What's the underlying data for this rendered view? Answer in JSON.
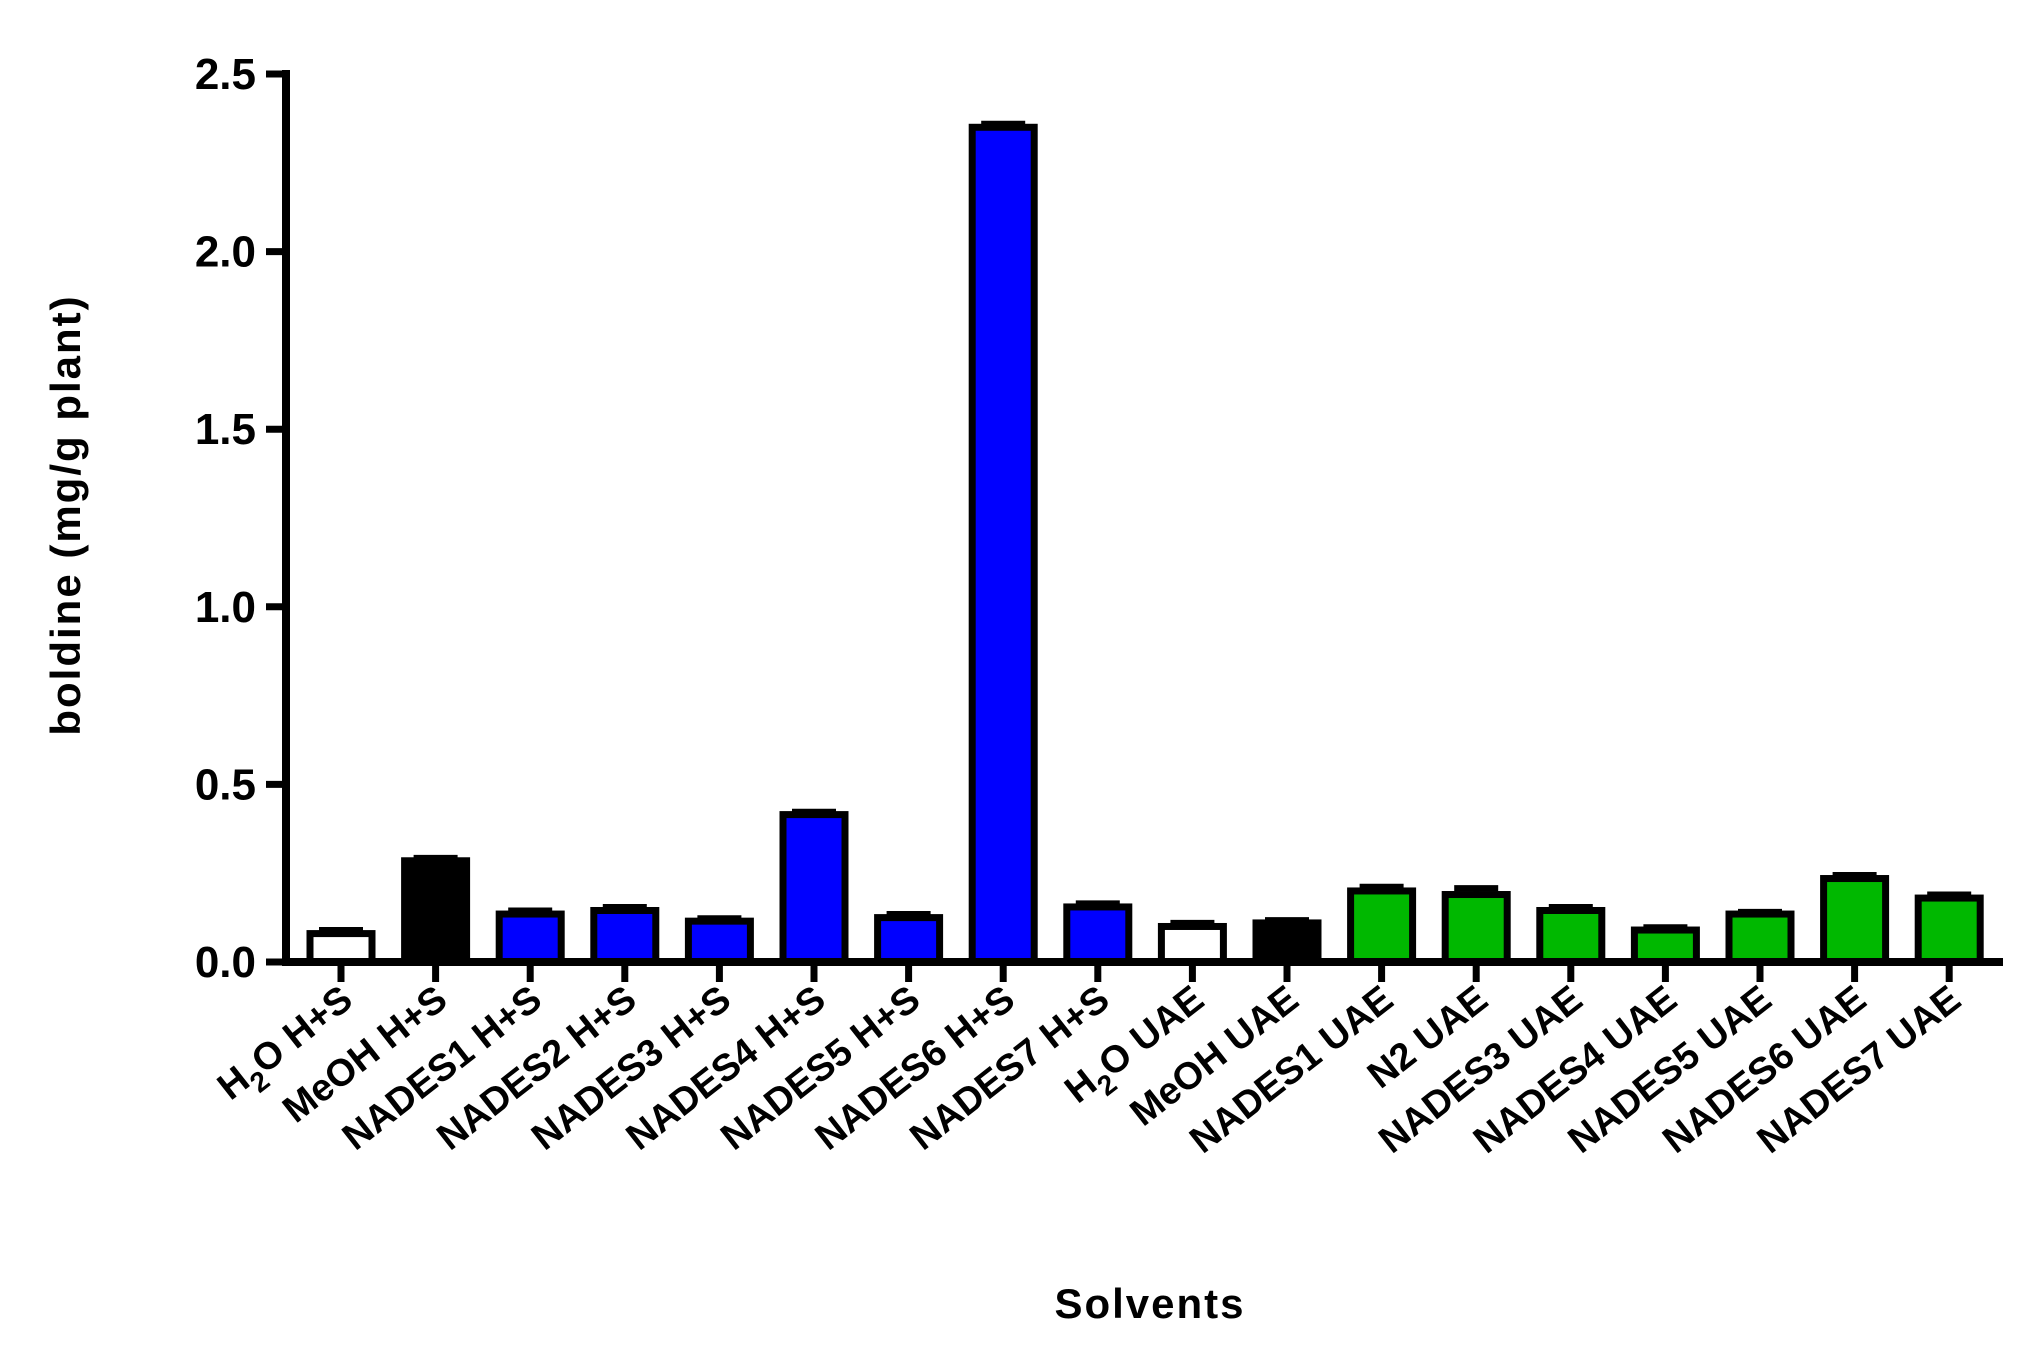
{
  "chart_data": {
    "type": "bar",
    "title": "",
    "xlabel": "Solvents",
    "ylabel": "boldine (mg/g plant)",
    "ylim": [
      0,
      2.5
    ],
    "yticks": [
      "0.0",
      "0.5",
      "1.0",
      "1.5",
      "2.0",
      "2.5"
    ],
    "grid": false,
    "legend": "none",
    "categories": [
      "H2O H+S",
      "MeOH H+S",
      "NADES1 H+S",
      "NADES2 H+S",
      "NADES3 H+S",
      "NADES4 H+S",
      "NADES5 H+S",
      "NADES6 H+S",
      "NADES7 H+S",
      "H2O UAE",
      "MeOH UAE",
      "NADES1 UAE",
      "N2 UAE",
      "NADES3 UAE",
      "NADES4 UAE",
      "NADES5 UAE",
      "NADES6 UAE",
      "NADES7 UAE"
    ],
    "label_parts": [
      {
        "pre": "H",
        "sub": "2",
        "post": "O H+S"
      },
      {
        "pre": "MeOH H+S"
      },
      {
        "pre": "NADES1 H+S"
      },
      {
        "pre": "NADES2 H+S"
      },
      {
        "pre": "NADES3 H+S"
      },
      {
        "pre": "NADES4 H+S"
      },
      {
        "pre": "NADES5 H+S"
      },
      {
        "pre": "NADES6 H+S"
      },
      {
        "pre": "NADES7 H+S"
      },
      {
        "pre": "H",
        "sub": "2",
        "post": "O UAE"
      },
      {
        "pre": "MeOH UAE"
      },
      {
        "pre": "NADES1 UAE"
      },
      {
        "pre": "N2 UAE"
      },
      {
        "pre": "NADES3 UAE"
      },
      {
        "pre": "NADES4 UAE"
      },
      {
        "pre": "NADES5 UAE"
      },
      {
        "pre": "NADES6 UAE"
      },
      {
        "pre": "NADES7 UAE"
      }
    ],
    "values": [
      0.08,
      0.285,
      0.135,
      0.145,
      0.115,
      0.415,
      0.125,
      2.35,
      0.155,
      0.1,
      0.11,
      0.2,
      0.19,
      0.145,
      0.09,
      0.135,
      0.235,
      0.18
    ],
    "errors": [
      0.01,
      0.008,
      0.01,
      0.01,
      0.008,
      0.008,
      0.01,
      0.01,
      0.01,
      0.01,
      0.008,
      0.012,
      0.018,
      0.01,
      0.008,
      0.006,
      0.01,
      0.01
    ],
    "fill_colors": [
      "#ffffff",
      "#000000",
      "#0000ff",
      "#0000ff",
      "#0000ff",
      "#0000ff",
      "#0000ff",
      "#0000ff",
      "#0000ff",
      "#ffffff",
      "#000000",
      "#00b800",
      "#00b800",
      "#00b800",
      "#00b800",
      "#00b800",
      "#00b800",
      "#00b800"
    ],
    "outline_color": "#000000"
  }
}
